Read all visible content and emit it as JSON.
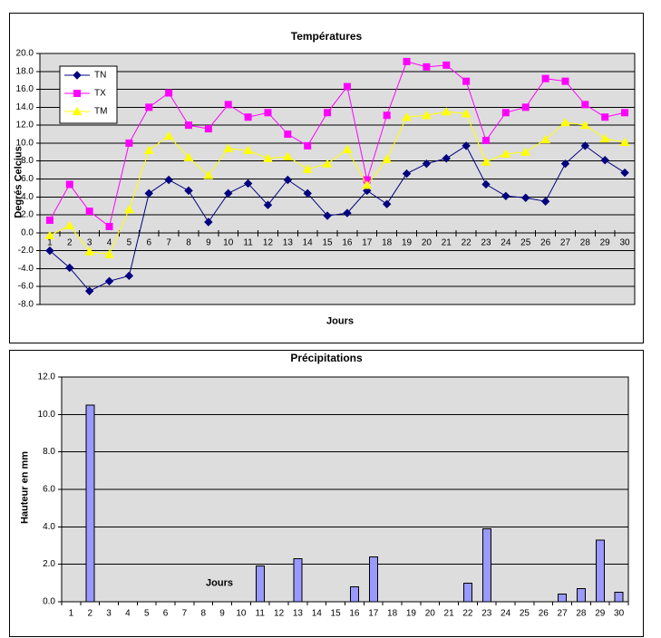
{
  "chart_data": [
    {
      "type": "line",
      "title": "Températures",
      "xlabel": "Jours",
      "ylabel": "Degrés Celcius",
      "ylim": [
        -8,
        20
      ],
      "ytick_step": 2,
      "ytick_labels": [
        "20.0",
        "18.0",
        "16.0",
        "14.0",
        "12.0",
        "10.0",
        "8.0",
        "6.0",
        "4.0",
        "2.0",
        "0.0",
        "-2.0",
        "-4.0",
        "-6.0",
        "-8.0"
      ],
      "categories": [
        1,
        2,
        3,
        4,
        5,
        6,
        7,
        8,
        9,
        10,
        11,
        12,
        13,
        14,
        15,
        16,
        17,
        18,
        19,
        20,
        21,
        22,
        23,
        24,
        25,
        26,
        27,
        28,
        29,
        30
      ],
      "grid": true,
      "plot_bg": "#DDDDDD",
      "gridline_color": "#000000",
      "legend_position": "inside-top-left",
      "series": [
        {
          "name": "TN",
          "color": "#000080",
          "marker": "diamond",
          "values": [
            -2.0,
            -3.9,
            -6.5,
            -5.4,
            -4.8,
            4.4,
            5.9,
            4.7,
            1.2,
            4.4,
            5.5,
            3.1,
            5.9,
            4.4,
            1.9,
            2.2,
            4.7,
            3.2,
            6.6,
            7.7,
            8.3,
            9.7,
            5.4,
            4.1,
            3.9,
            3.5,
            7.7,
            9.7,
            8.1,
            6.7
          ]
        },
        {
          "name": "TX",
          "color": "#FF00FF",
          "marker": "square",
          "values": [
            1.4,
            5.4,
            2.4,
            0.7,
            10.0,
            14.0,
            15.6,
            12.0,
            11.6,
            14.3,
            12.9,
            13.4,
            11.0,
            9.7,
            13.4,
            16.3,
            5.9,
            13.1,
            19.1,
            18.5,
            18.7,
            16.9,
            10.3,
            13.4,
            14.0,
            17.2,
            16.9,
            14.3,
            12.9,
            13.4
          ]
        },
        {
          "name": "TM",
          "color": "#FFFF00",
          "marker": "triangle",
          "values": [
            -0.3,
            0.8,
            -2.1,
            -2.4,
            2.6,
            9.2,
            10.8,
            8.4,
            6.4,
            9.4,
            9.2,
            8.3,
            8.5,
            7.1,
            7.7,
            9.3,
            5.3,
            8.2,
            12.9,
            13.1,
            13.5,
            13.3,
            7.9,
            8.8,
            9.0,
            10.4,
            12.3,
            12.0,
            10.5,
            10.1
          ]
        }
      ]
    },
    {
      "type": "bar",
      "title": "Précipitations",
      "xlabel": "Jours",
      "ylabel": "Hauteur en mm",
      "ylim": [
        0,
        12
      ],
      "ytick_step": 2,
      "ytick_labels": [
        "12.0",
        "10.0",
        "8.0",
        "6.0",
        "4.0",
        "2.0",
        "0.0"
      ],
      "categories": [
        1,
        2,
        3,
        4,
        5,
        6,
        7,
        8,
        9,
        10,
        11,
        12,
        13,
        14,
        15,
        16,
        17,
        18,
        19,
        20,
        21,
        22,
        23,
        24,
        25,
        26,
        27,
        28,
        29,
        30
      ],
      "grid": true,
      "plot_bg": "#DDDDDD",
      "gridline_color": "#000000",
      "bar_color": "#9999FF",
      "bar_border_color": "#000000",
      "values": [
        0,
        10.5,
        0,
        0,
        0,
        0,
        0,
        0,
        0,
        0,
        1.9,
        0,
        2.3,
        0,
        0,
        0.8,
        2.4,
        0,
        0,
        0,
        0,
        1.0,
        3.9,
        0,
        0,
        0,
        0.4,
        0.7,
        3.3,
        0.5
      ]
    }
  ]
}
